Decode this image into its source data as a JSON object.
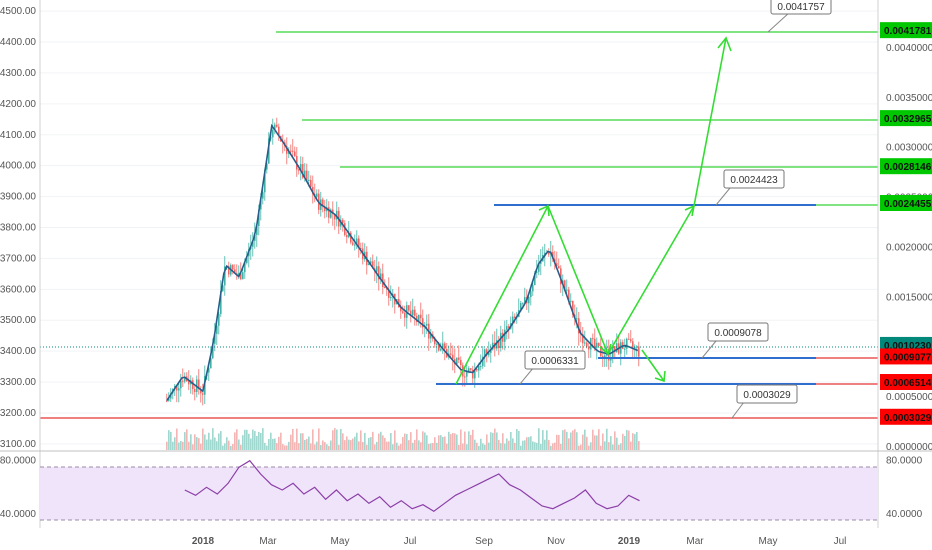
{
  "chart_data": [
    {
      "type": "candlestick",
      "title": "",
      "left_axis": {
        "ylim": [
          3090,
          4510
        ],
        "ticks": [
          "4500.00",
          "4400.00",
          "4300.00",
          "4200.00",
          "4100.00",
          "4000.00",
          "3900.00",
          "3800.00",
          "3700.00",
          "3600.00",
          "3500.00",
          "3400.00",
          "3300.00",
          "3200.00",
          "3100.00"
        ]
      },
      "right_axis": {
        "ylim": [
          0.0,
          0.0044
        ],
        "ticks": [
          "0.0040000",
          "0.0035000",
          "0.0030000",
          "0.0025000",
          "0.0020000",
          "0.0015000",
          "0.0010000",
          "0.0005000",
          "0.0000000"
        ]
      },
      "x_axis": {
        "labels": [
          "2018",
          "Mar",
          "May",
          "Jul",
          "Sep",
          "Nov",
          "2019",
          "Mar",
          "May",
          "Jul"
        ]
      },
      "price_points": [
        [
          "2017-12-01",
          3240
        ],
        [
          "2017-12-15",
          3320
        ],
        [
          "2018-01-01",
          3270
        ],
        [
          "2018-01-10",
          3430
        ],
        [
          "2018-01-20",
          3680
        ],
        [
          "2018-02-01",
          3640
        ],
        [
          "2018-02-15",
          3780
        ],
        [
          "2018-03-01",
          4130
        ],
        [
          "2018-03-10",
          4080
        ],
        [
          "2018-03-25",
          3990
        ],
        [
          "2018-04-10",
          3880
        ],
        [
          "2018-04-25",
          3840
        ],
        [
          "2018-05-10",
          3760
        ],
        [
          "2018-06-01",
          3640
        ],
        [
          "2018-06-20",
          3540
        ],
        [
          "2018-07-10",
          3480
        ],
        [
          "2018-07-25",
          3410
        ],
        [
          "2018-08-10",
          3340
        ],
        [
          "2018-08-20",
          3330
        ],
        [
          "2018-09-01",
          3390
        ],
        [
          "2018-09-20",
          3470
        ],
        [
          "2018-10-05",
          3560
        ],
        [
          "2018-10-15",
          3680
        ],
        [
          "2018-10-25",
          3730
        ],
        [
          "2018-11-05",
          3620
        ],
        [
          "2018-11-20",
          3460
        ],
        [
          "2018-12-05",
          3400
        ],
        [
          "2018-12-15",
          3390
        ],
        [
          "2018-12-28",
          3420
        ],
        [
          "2019-01-10",
          3400
        ]
      ],
      "price_labels": [
        {
          "value": "0.0041781",
          "color": "#00c800"
        },
        {
          "value": "0.0032965",
          "color": "#00c800"
        },
        {
          "value": "0.0028146",
          "color": "#00c800"
        },
        {
          "value": "0.0024455",
          "color": "#00c800"
        },
        {
          "value": "0.0010230",
          "color": "#00897b"
        },
        {
          "value": "0.0009077",
          "color": "#ff0000"
        },
        {
          "value": "0.0006514",
          "color": "#ff0000"
        },
        {
          "value": "0.0003029",
          "color": "#ff0000"
        }
      ],
      "callouts": [
        "0.0041757",
        "0.0024423",
        "0.0009078",
        "0.0006331",
        "0.0003029"
      ]
    },
    {
      "type": "line",
      "title": "",
      "ylim": [
        28,
        82
      ],
      "ticks_left": [
        "80.0000",
        "40.0000"
      ],
      "ticks_right": [
        "80.0000",
        "40.0000"
      ],
      "upper_band": 80,
      "lower_band": 20,
      "series": [
        {
          "values": [
            58,
            54,
            60,
            55,
            63,
            75,
            80,
            70,
            62,
            58,
            63,
            55,
            60,
            51,
            58,
            50,
            55,
            48,
            53,
            45,
            50,
            44,
            47,
            42,
            48,
            54,
            58,
            62,
            66,
            70,
            62,
            58,
            52,
            46,
            44,
            48,
            52,
            58,
            48,
            44,
            46,
            54,
            50
          ]
        }
      ]
    }
  ],
  "colors": {
    "green_line": "#00c800",
    "blue_line": "#2f6ecf",
    "red_line": "#e00000",
    "ma_line": "#2b5c8a",
    "rsi_line": "#8c3fa8",
    "rsi_fill": "#f0e4fa"
  }
}
